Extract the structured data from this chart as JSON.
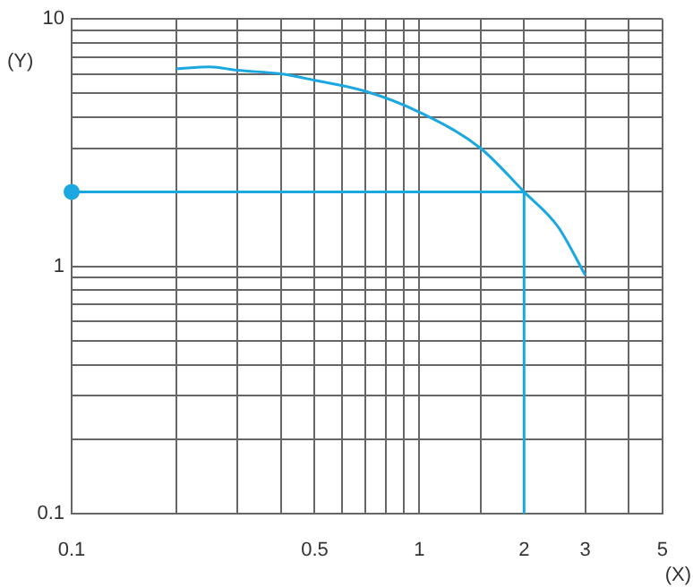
{
  "chart_data": {
    "type": "line",
    "xlabel": "(X)",
    "ylabel": "(Y)",
    "log": "xy",
    "grid": true,
    "legend": false,
    "xlim": [
      0.1,
      5
    ],
    "ylim": [
      0.1,
      10
    ],
    "xticks": [
      0.1,
      {
        "value": 0.2,
        "label": null
      },
      {
        "value": 0.3,
        "label": null
      },
      {
        "value": 0.4,
        "label": null
      },
      0.5,
      {
        "value": 0.6,
        "label": null
      },
      {
        "value": 0.7,
        "label": null
      },
      {
        "value": 0.8,
        "label": null
      },
      {
        "value": 0.9,
        "label": null
      },
      1,
      {
        "value": 1.5,
        "label": null
      },
      2,
      3,
      {
        "value": 4,
        "label": null
      },
      5
    ],
    "yticks": [
      0.1,
      {
        "value": 0.2,
        "label": null
      },
      {
        "value": 0.3,
        "label": null
      },
      {
        "value": 0.4,
        "label": null
      },
      {
        "value": 0.5,
        "label": null
      },
      {
        "value": 0.6,
        "label": null
      },
      {
        "value": 0.7,
        "label": null
      },
      {
        "value": 0.8,
        "label": null
      },
      {
        "value": 0.9,
        "label": null
      },
      1,
      {
        "value": 2,
        "label": null
      },
      {
        "value": 3,
        "label": null
      },
      {
        "value": 4,
        "label": null
      },
      {
        "value": 5,
        "label": null
      },
      {
        "value": 6,
        "label": null
      },
      {
        "value": 7,
        "label": null
      },
      {
        "value": 8,
        "label": null
      },
      {
        "value": 9,
        "label": null
      },
      10
    ],
    "series": [
      {
        "color": "#1ba8e0",
        "x": [
          0.2,
          0.25,
          0.3,
          0.4,
          0.5,
          0.7,
          1,
          1.5,
          2,
          2.5,
          3
        ],
        "values": [
          6.3,
          6.4,
          6.2,
          6.0,
          5.65,
          5.1,
          4.2,
          3.0,
          2,
          1.45,
          0.92
        ]
      },
      {
        "type": "line",
        "color": "#1ba8e0",
        "x": [
          0.1,
          2,
          2
        ],
        "values": [
          2,
          2,
          0.1
        ]
      },
      {
        "type": "scatter",
        "color": "#1ba8e0",
        "marker": "circle",
        "x": [
          0.1
        ],
        "values": [
          2
        ]
      }
    ]
  }
}
